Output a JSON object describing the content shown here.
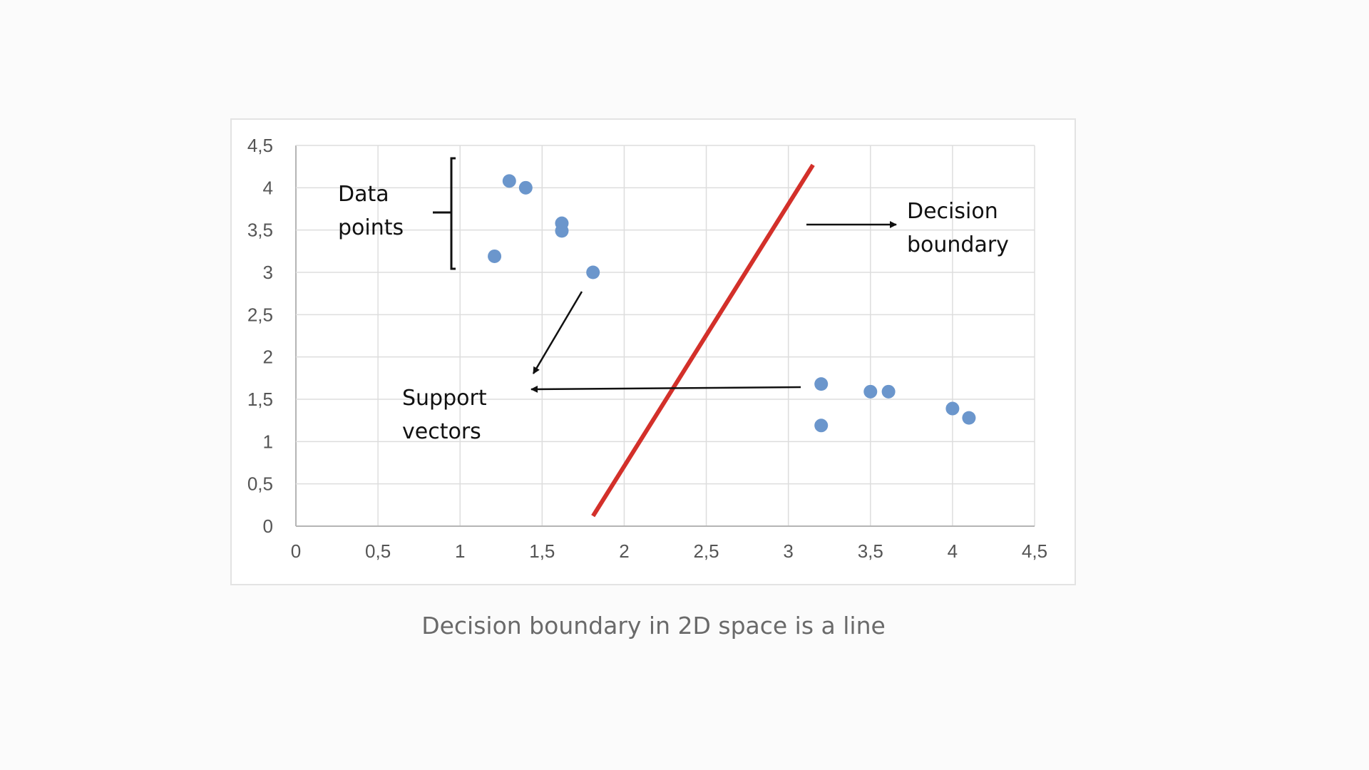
{
  "chart_data": {
    "type": "scatter",
    "xlim": [
      0,
      4.5
    ],
    "ylim": [
      0,
      4.5
    ],
    "xticks": [
      "0",
      "0,5",
      "1",
      "1,5",
      "2",
      "2,5",
      "3",
      "3,5",
      "4",
      "4,5"
    ],
    "yticks": [
      "0",
      "0,5",
      "1",
      "1,5",
      "2",
      "2,5",
      "3",
      "3,5",
      "4",
      "4,5"
    ],
    "grid": true,
    "series": [
      {
        "x": [
          1.3,
          1.4,
          1.62,
          1.62,
          1.21,
          1.81,
          3.2,
          3.2,
          3.5,
          3.61,
          4.0,
          4.1
        ],
        "y": [
          4.08,
          4.0,
          3.58,
          3.49,
          3.19,
          3.0,
          1.68,
          1.19,
          1.59,
          1.59,
          1.39,
          1.28
        ],
        "color": "#6b96cc"
      }
    ],
    "decision_boundary": {
      "x": [
        1.81,
        3.15
      ],
      "y": [
        0.12,
        4.27
      ],
      "color": "#d3302a"
    },
    "annotations": {
      "data_points": [
        "Data",
        "points"
      ],
      "decision_boundary": [
        "Decision",
        "boundary"
      ],
      "support_vectors": [
        "Support",
        "vectors"
      ]
    }
  },
  "caption": "Decision boundary in 2D space is a line"
}
